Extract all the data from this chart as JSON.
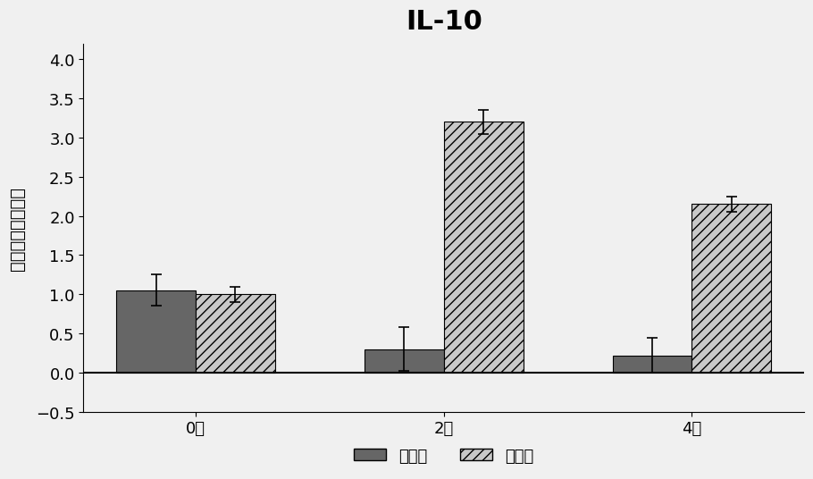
{
  "title": "IL-10",
  "ylabel": "基因表达相对变化",
  "categories": [
    "0周",
    "2周",
    "4周"
  ],
  "exp_values": [
    1.05,
    0.3,
    0.22
  ],
  "ctrl_values": [
    1.0,
    3.2,
    2.15
  ],
  "exp_errors": [
    0.2,
    0.28,
    0.22
  ],
  "ctrl_errors": [
    0.1,
    0.15,
    0.1
  ],
  "exp_color": "#666666",
  "ctrl_color": "#c8c8c8",
  "ylim": [
    -0.5,
    4.2
  ],
  "yticks": [
    -0.5,
    0.0,
    0.5,
    1.0,
    1.5,
    2.0,
    2.5,
    3.0,
    3.5,
    4.0
  ],
  "bar_width": 0.32,
  "title_fontsize": 22,
  "axis_fontsize": 14,
  "tick_fontsize": 13,
  "legend_fontsize": 13,
  "background_color": "#f0f0f0"
}
